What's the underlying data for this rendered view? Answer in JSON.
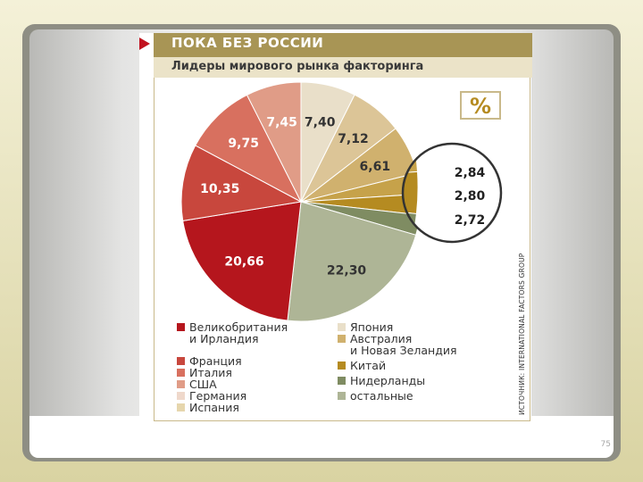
{
  "slide": {
    "page_number": "75"
  },
  "header": {
    "title": "ПОКА БЕЗ РОССИИ",
    "subtitle": "Лидеры мирового рынка факторинга"
  },
  "unit_badge": "%",
  "source_note": "ИСТОЧНИК: INTERNATIONAL FACTORS GROUP",
  "chart_data": {
    "type": "pie",
    "unit": "%",
    "slices": [
      {
        "label": "Япония",
        "value": 7.4,
        "display": "7,40",
        "color": "#e9dfc9"
      },
      {
        "label": "Австралия и Новая Зеландия",
        "value": 7.12,
        "display": "7,12",
        "color": "#dcc597"
      },
      {
        "label": "Китай",
        "value": 6.61,
        "display": "6,61",
        "color": "#d0b16e"
      },
      {
        "label": "",
        "value": 2.84,
        "display": "2,84",
        "color": "#c6a24a"
      },
      {
        "label": "",
        "value": 2.8,
        "display": "2,80",
        "color": "#b58b21"
      },
      {
        "label": "",
        "value": 2.72,
        "display": "2,72",
        "color": "#7f8c62"
      },
      {
        "label": "остальные",
        "value": 22.3,
        "display": "22,30",
        "color": "#aeb596"
      },
      {
        "label": "Великобритания и Ирландия",
        "value": 20.66,
        "display": "20,66",
        "color": "#b5161d"
      },
      {
        "label": "Франция",
        "value": 10.35,
        "display": "10,35",
        "color": "#c8473d"
      },
      {
        "label": "Италия",
        "value": 9.75,
        "display": "9,75",
        "color": "#d8705f"
      },
      {
        "label": "США",
        "value": 7.45,
        "display": "7,45",
        "color": "#e09c87"
      }
    ],
    "legend": [
      {
        "lines": [
          "Великобритания",
          "и Ирландия"
        ],
        "color": "#b5161d"
      },
      {
        "lines": [
          "Франция"
        ],
        "color": "#c8473d"
      },
      {
        "lines": [
          "Италия"
        ],
        "color": "#d8705f"
      },
      {
        "lines": [
          "США"
        ],
        "color": "#e09c87"
      },
      {
        "lines": [
          "Германия"
        ],
        "color": "#efd8cb"
      },
      {
        "lines": [
          "Испания"
        ],
        "color": "#e6d6ad"
      },
      {
        "lines": [
          "Япония"
        ],
        "color": "#e9dfc9"
      },
      {
        "lines": [
          "Австралия",
          "и Новая Зеландия"
        ],
        "color": "#d0b16e"
      },
      {
        "lines": [
          "Китай"
        ],
        "color": "#b58b21"
      },
      {
        "lines": [
          "Нидерланды"
        ],
        "color": "#7f8c62"
      },
      {
        "lines": [
          "остальные"
        ],
        "color": "#aeb596"
      }
    ],
    "legend_placement": "bottom"
  }
}
